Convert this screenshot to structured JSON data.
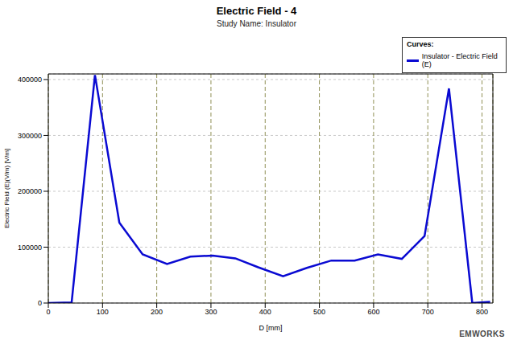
{
  "chart_data": {
    "type": "line",
    "title": "Electric Field - 4",
    "subtitle": "Study Name: Insulator",
    "x_label": "D [mm]",
    "y_label": "Electric Field (E)(V/m) [V/m]",
    "legend_title": "Curves:",
    "annotations": [
      "EMWORKS"
    ],
    "x": [
      0,
      43,
      86,
      131,
      174,
      219,
      262,
      303,
      345,
      387,
      433,
      477,
      522,
      565,
      608,
      652,
      694,
      739,
      782,
      815
    ],
    "series": [
      {
        "name": "Insulator - Electric Field (E)",
        "color": "#0a0ad2",
        "line_style": "solid",
        "values": [
          0,
          1000,
          408000,
          144000,
          87000,
          70000,
          83000,
          85000,
          80000,
          64000,
          48000,
          63000,
          76000,
          76000,
          87000,
          79000,
          120000,
          384000,
          0,
          2000
        ]
      }
    ],
    "xlim": [
      0,
      820
    ],
    "xticks": [
      0,
      100,
      200,
      300,
      400,
      500,
      600,
      700,
      800
    ],
    "ylim": [
      0,
      410000
    ],
    "yticks": [
      0,
      100000,
      200000,
      300000,
      400000
    ],
    "grid": true,
    "legend": "top-right"
  }
}
